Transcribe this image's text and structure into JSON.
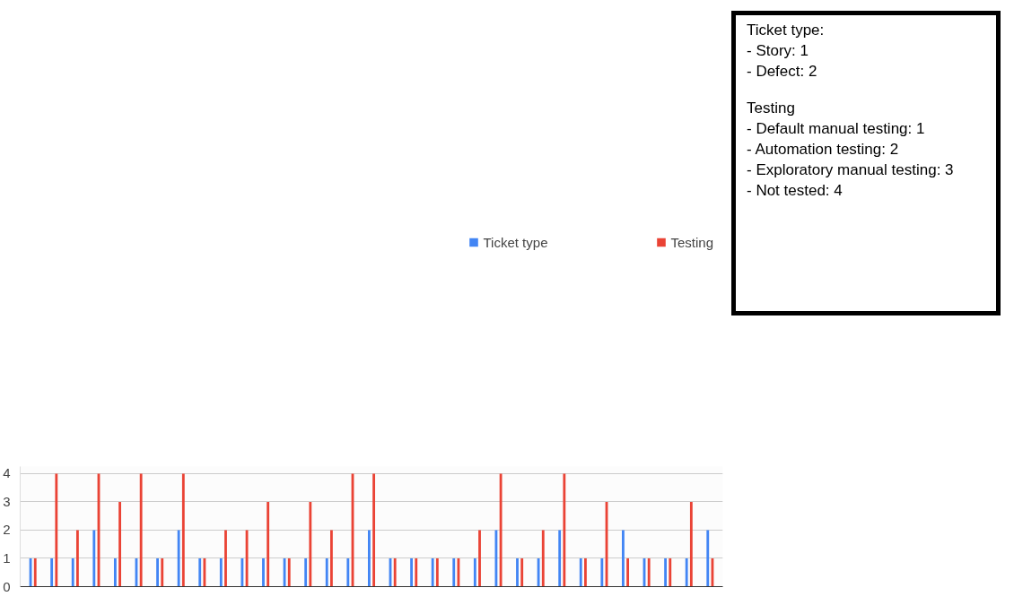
{
  "chart_data": {
    "type": "bar",
    "categories": [
      null,
      null,
      null,
      null,
      null,
      null,
      null,
      null,
      null,
      null,
      null,
      null,
      null,
      null,
      null,
      null,
      null,
      null,
      null,
      null,
      null,
      null,
      null,
      null,
      null,
      null,
      null,
      null,
      null,
      null,
      null,
      null,
      null
    ],
    "series": [
      {
        "name": "Ticket type",
        "color": "#4285f4",
        "values": [
          1,
          1,
          1,
          2,
          1,
          1,
          1,
          2,
          1,
          1,
          1,
          1,
          1,
          1,
          1,
          1,
          2,
          1,
          1,
          1,
          1,
          1,
          2,
          1,
          1,
          2,
          1,
          1,
          2,
          1,
          1,
          1,
          2
        ]
      },
      {
        "name": "Testing",
        "color": "#ea4335",
        "values": [
          1,
          4,
          2,
          4,
          3,
          4,
          1,
          4,
          1,
          2,
          2,
          3,
          1,
          3,
          2,
          4,
          4,
          1,
          1,
          1,
          1,
          2,
          4,
          1,
          2,
          4,
          1,
          3,
          1,
          1,
          1,
          3,
          1
        ]
      }
    ],
    "ylim": [
      0,
      4.25
    ],
    "yticks": [
      0,
      1,
      2,
      3,
      4
    ],
    "grid": "y",
    "legend": "top",
    "annotations": [
      "Ticket type:\n- Story: 1\n- Defect: 2",
      "Testing\n- Default manual testing: 1\n- Automation testing: 2\n- Exploratory manual testing: 3\n- Not tested: 4"
    ]
  }
}
